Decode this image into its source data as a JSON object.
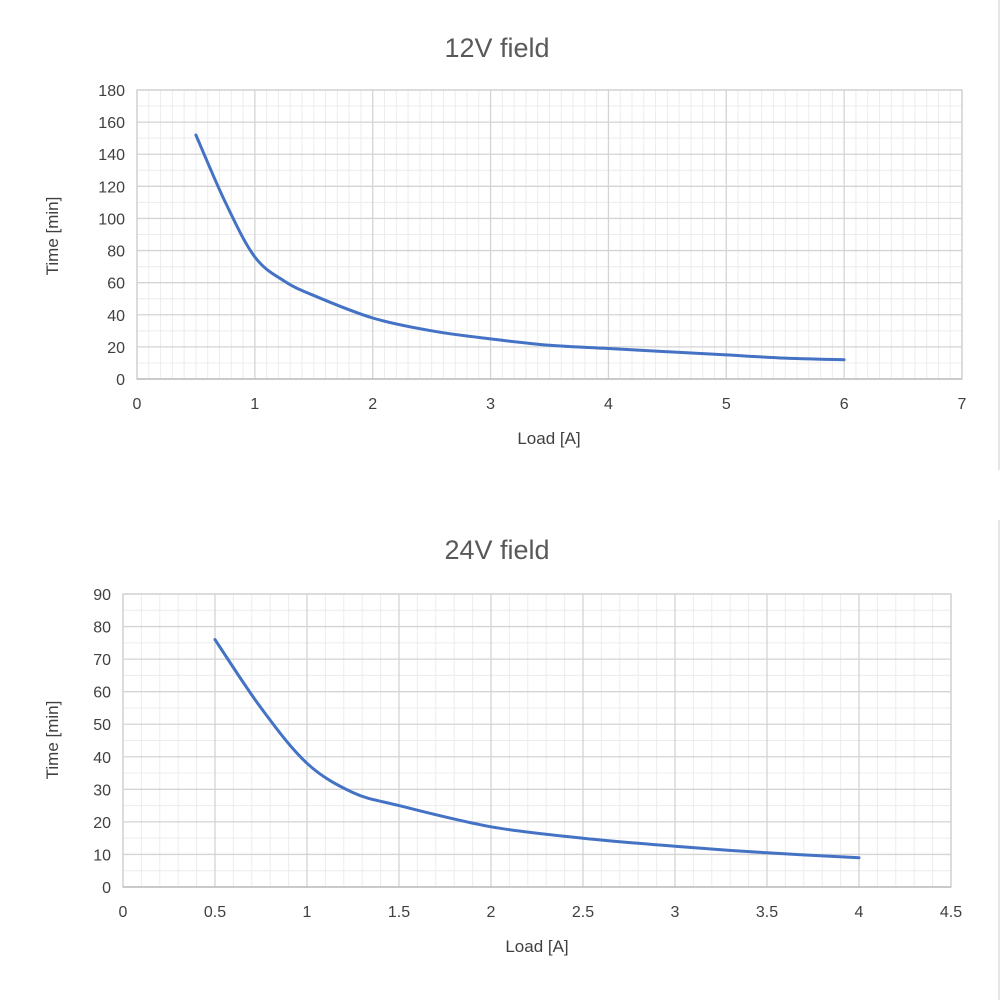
{
  "chart_data": [
    {
      "type": "line",
      "title": "12V field",
      "xlabel": "Load [A]",
      "ylabel": "Time [min]",
      "xlim": [
        0,
        7
      ],
      "ylim": [
        0,
        180
      ],
      "x_ticks": [
        0,
        1,
        2,
        3,
        4,
        5,
        6,
        7
      ],
      "y_ticks": [
        0,
        20,
        40,
        60,
        80,
        100,
        120,
        140,
        160,
        180
      ],
      "grid": "major and minor",
      "legend": "none",
      "series": [
        {
          "color": "#4472c4",
          "x": [
            0.5,
            0.75,
            1,
            1.25,
            1.5,
            2,
            2.5,
            3,
            3.5,
            4,
            4.5,
            5,
            5.5,
            6
          ],
          "y": [
            152,
            110,
            76,
            61,
            52,
            38,
            30,
            25,
            21,
            19,
            17,
            15,
            13,
            12
          ]
        }
      ]
    },
    {
      "type": "line",
      "title": "24V field",
      "xlabel": "Load [A]",
      "ylabel": "Time [min]",
      "xlim": [
        0,
        4.5
      ],
      "ylim": [
        0,
        90
      ],
      "x_ticks": [
        0,
        0.5,
        1,
        1.5,
        2,
        2.5,
        3,
        3.5,
        4,
        4.5
      ],
      "y_ticks": [
        0,
        10,
        20,
        30,
        40,
        50,
        60,
        70,
        80,
        90
      ],
      "grid": "major and minor",
      "legend": "none",
      "series": [
        {
          "color": "#4472c4",
          "x": [
            0.5,
            0.75,
            1,
            1.25,
            1.5,
            2,
            2.5,
            3,
            3.5,
            4
          ],
          "y": [
            76,
            55,
            38,
            29,
            25,
            18.5,
            15,
            12.5,
            10.5,
            9
          ]
        }
      ]
    }
  ]
}
